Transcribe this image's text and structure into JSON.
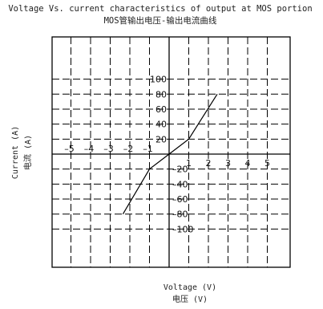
{
  "chart_data": {
    "type": "line",
    "title": "Voltage Vs. current characteristics of output at MOS portion",
    "subtitle": "MOS管输出电压-输出电流曲线",
    "xlabel": "Voltage (V)",
    "xlabel_cn": "电压 (V)",
    "ylabel": "Current (A)",
    "ylabel_cn": "电流 (A)",
    "xlim": [
      -6,
      6
    ],
    "ylim": [
      -120,
      120
    ],
    "x_ticks": [
      -5,
      -4,
      -3,
      -2,
      -1,
      1,
      2,
      3,
      4,
      5
    ],
    "y_ticks": [
      100,
      80,
      60,
      40,
      20,
      -20,
      -40,
      -60,
      -80,
      -100
    ],
    "grid": true,
    "series": [
      {
        "x": [
          -2.35,
          -1,
          0,
          1,
          2.45
        ],
        "y": [
          -80,
          -20,
          0,
          20,
          80
        ]
      }
    ]
  }
}
